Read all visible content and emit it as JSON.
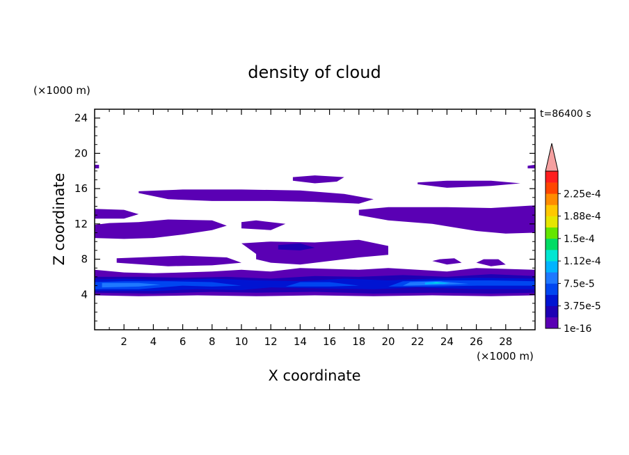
{
  "chart_data": {
    "type": "heatmap",
    "title": "density of cloud",
    "xlabel": "X coordinate",
    "ylabel": "Z coordinate",
    "x_unit": "(×1000 m)",
    "y_unit": "(×1000 m)",
    "time_label": "t=86400 s",
    "xlim": [
      0,
      30
    ],
    "ylim": [
      0,
      25
    ],
    "xticks": [
      2,
      4,
      6,
      8,
      10,
      12,
      14,
      16,
      18,
      20,
      22,
      24,
      26,
      28
    ],
    "yticks": [
      4,
      8,
      12,
      16,
      20,
      24
    ],
    "colorbar": {
      "levels": [
        1e-16,
        1.875e-05,
        3.75e-05,
        5.625e-05,
        7.5e-05,
        9.375e-05,
        0.0001125,
        0.00013125,
        0.00015,
        0.00016875,
        0.0001875,
        0.00020625,
        0.000225,
        0.00024375
      ],
      "labels": [
        "1e-16",
        "3.75e-5",
        "7.5e-5",
        "1.12e-4",
        "1.5e-4",
        "1.88e-4",
        "2.25e-4"
      ],
      "colors": [
        "#5a00b4",
        "#1e00b4",
        "#0014d2",
        "#0046f0",
        "#1e78ff",
        "#00b4ff",
        "#00e6d2",
        "#00dc64",
        "#64e600",
        "#e6e600",
        "#ffc800",
        "#ff8c00",
        "#ff4600",
        "#ff1e1e"
      ],
      "extend_color": "#f5a0a0"
    },
    "regions": [
      {
        "level": 0,
        "points": [
          [
            0,
            3.9
          ],
          [
            3,
            3.8
          ],
          [
            7,
            3.9
          ],
          [
            11,
            3.8
          ],
          [
            15,
            3.9
          ],
          [
            19,
            3.8
          ],
          [
            23,
            3.9
          ],
          [
            27,
            3.8
          ],
          [
            30,
            3.9
          ],
          [
            30,
            6.8
          ],
          [
            28,
            6.9
          ],
          [
            26,
            7.0
          ],
          [
            24,
            6.6
          ],
          [
            22,
            6.8
          ],
          [
            20,
            7.0
          ],
          [
            18,
            6.8
          ],
          [
            16,
            6.9
          ],
          [
            14,
            7.0
          ],
          [
            12,
            6.6
          ],
          [
            10,
            6.8
          ],
          [
            8,
            6.6
          ],
          [
            6,
            6.5
          ],
          [
            4,
            6.4
          ],
          [
            2,
            6.5
          ],
          [
            0,
            6.8
          ]
        ]
      },
      {
        "level": 0,
        "points": [
          [
            0,
            10.4
          ],
          [
            2,
            10.3
          ],
          [
            4,
            10.4
          ],
          [
            6,
            10.8
          ],
          [
            8,
            11.3
          ],
          [
            9,
            11.8
          ],
          [
            8,
            12.4
          ],
          [
            5,
            12.5
          ],
          [
            3,
            12.2
          ],
          [
            1,
            12.1
          ],
          [
            0,
            11.9
          ]
        ]
      },
      {
        "level": 0,
        "points": [
          [
            0,
            12.6
          ],
          [
            2,
            12.6
          ],
          [
            3,
            13.1
          ],
          [
            2,
            13.6
          ],
          [
            0,
            13.7
          ]
        ]
      },
      {
        "level": 0,
        "points": [
          [
            3,
            15.5
          ],
          [
            5,
            14.8
          ],
          [
            8,
            14.6
          ],
          [
            12,
            14.6
          ],
          [
            15,
            14.5
          ],
          [
            18,
            14.3
          ],
          [
            19,
            14.8
          ],
          [
            17,
            15.4
          ],
          [
            14,
            15.8
          ],
          [
            10,
            15.9
          ],
          [
            6,
            15.9
          ],
          [
            3,
            15.7
          ]
        ]
      },
      {
        "level": 0,
        "points": [
          [
            10,
            11.5
          ],
          [
            12,
            11.3
          ],
          [
            13,
            12.0
          ],
          [
            11,
            12.4
          ],
          [
            10,
            12.2
          ]
        ]
      },
      {
        "level": 0,
        "points": [
          [
            18,
            13.0
          ],
          [
            20,
            12.4
          ],
          [
            23,
            12.0
          ],
          [
            26,
            11.2
          ],
          [
            28,
            10.9
          ],
          [
            30,
            11.0
          ],
          [
            30,
            14.1
          ],
          [
            27,
            13.8
          ],
          [
            24,
            13.9
          ],
          [
            20,
            13.9
          ],
          [
            18,
            13.6
          ]
        ]
      },
      {
        "level": 0,
        "points": [
          [
            22,
            16.5
          ],
          [
            24,
            16.1
          ],
          [
            27,
            16.3
          ],
          [
            29,
            16.6
          ],
          [
            27,
            16.9
          ],
          [
            24,
            16.9
          ],
          [
            22,
            16.7
          ]
        ]
      },
      {
        "level": 0,
        "points": [
          [
            13.5,
            16.9
          ],
          [
            15,
            16.6
          ],
          [
            16.5,
            16.8
          ],
          [
            17,
            17.3
          ],
          [
            15,
            17.5
          ],
          [
            13.5,
            17.3
          ]
        ]
      },
      {
        "level": 0,
        "points": [
          [
            11,
            8.0
          ],
          [
            12,
            7.6
          ],
          [
            14,
            7.4
          ],
          [
            16,
            7.8
          ],
          [
            18,
            8.2
          ],
          [
            20,
            8.5
          ],
          [
            20,
            9.5
          ],
          [
            18,
            10.2
          ],
          [
            15,
            9.9
          ],
          [
            12,
            10.0
          ],
          [
            10,
            9.8
          ],
          [
            11,
            8.6
          ]
        ]
      },
      {
        "level": 0,
        "points": [
          [
            1.5,
            7.6
          ],
          [
            5,
            7.2
          ],
          [
            8,
            7.3
          ],
          [
            10,
            7.6
          ],
          [
            9,
            8.2
          ],
          [
            6,
            8.4
          ],
          [
            3,
            8.2
          ],
          [
            1.5,
            8.1
          ]
        ]
      },
      {
        "level": 0,
        "points": [
          [
            23,
            7.8
          ],
          [
            24,
            7.4
          ],
          [
            25,
            7.6
          ],
          [
            24.5,
            8.1
          ],
          [
            23.5,
            8.0
          ]
        ]
      },
      {
        "level": 0,
        "points": [
          [
            26,
            7.6
          ],
          [
            27,
            7.2
          ],
          [
            28,
            7.4
          ],
          [
            27.5,
            8.0
          ],
          [
            26.5,
            8.0
          ]
        ]
      },
      {
        "level": 0,
        "points": [
          [
            29.5,
            18.3
          ],
          [
            30,
            18.3
          ],
          [
            30,
            18.7
          ],
          [
            29.5,
            18.6
          ]
        ]
      },
      {
        "level": 0,
        "points": [
          [
            0,
            18.3
          ],
          [
            0.3,
            18.3
          ],
          [
            0.3,
            18.7
          ],
          [
            0,
            18.7
          ]
        ]
      },
      {
        "level": 1,
        "points": [
          [
            0,
            4.2
          ],
          [
            4,
            4.1
          ],
          [
            8,
            4.3
          ],
          [
            11,
            4.2
          ],
          [
            15,
            4.3
          ],
          [
            19,
            4.1
          ],
          [
            23,
            4.2
          ],
          [
            27,
            4.1
          ],
          [
            30,
            4.2
          ],
          [
            30,
            6.1
          ],
          [
            27,
            6.3
          ],
          [
            24,
            6.0
          ],
          [
            21,
            6.2
          ],
          [
            18,
            6.0
          ],
          [
            15,
            6.1
          ],
          [
            12,
            5.8
          ],
          [
            9,
            6.0
          ],
          [
            6,
            5.9
          ],
          [
            3,
            6.0
          ],
          [
            0,
            6.0
          ]
        ]
      },
      {
        "level": 1,
        "points": [
          [
            12.5,
            9.1
          ],
          [
            14,
            9.0
          ],
          [
            15,
            9.3
          ],
          [
            14,
            9.8
          ],
          [
            12.5,
            9.6
          ]
        ]
      },
      {
        "level": 2,
        "points": [
          [
            0,
            4.4
          ],
          [
            4,
            4.4
          ],
          [
            7,
            4.6
          ],
          [
            10,
            4.5
          ],
          [
            12,
            4.8
          ],
          [
            15,
            4.7
          ],
          [
            19,
            4.6
          ],
          [
            22,
            4.8
          ],
          [
            26,
            4.6
          ],
          [
            30,
            4.6
          ],
          [
            30,
            5.8
          ],
          [
            26,
            5.9
          ],
          [
            23,
            5.8
          ],
          [
            20,
            5.6
          ],
          [
            17,
            5.8
          ],
          [
            14,
            5.5
          ],
          [
            11,
            5.6
          ],
          [
            8,
            5.8
          ],
          [
            5,
            5.6
          ],
          [
            2,
            5.8
          ],
          [
            0,
            5.7
          ]
        ]
      },
      {
        "level": 3,
        "points": [
          [
            0,
            4.6
          ],
          [
            3,
            4.6
          ],
          [
            6,
            5.0
          ],
          [
            8,
            4.9
          ],
          [
            10,
            5.0
          ],
          [
            8,
            5.4
          ],
          [
            5,
            5.5
          ],
          [
            2,
            5.5
          ],
          [
            0,
            5.4
          ]
        ]
      },
      {
        "level": 3,
        "points": [
          [
            13,
            4.9
          ],
          [
            16,
            4.9
          ],
          [
            18,
            5.0
          ],
          [
            16,
            5.4
          ],
          [
            14,
            5.4
          ]
        ]
      },
      {
        "level": 3,
        "points": [
          [
            20,
            4.9
          ],
          [
            23,
            4.9
          ],
          [
            26,
            5.0
          ],
          [
            29,
            5.0
          ],
          [
            30,
            5.0
          ],
          [
            30,
            5.5
          ],
          [
            27,
            5.6
          ],
          [
            24,
            5.6
          ],
          [
            21,
            5.5
          ]
        ]
      },
      {
        "level": 4,
        "points": [
          [
            0.5,
            4.8
          ],
          [
            3,
            4.9
          ],
          [
            4.5,
            5.1
          ],
          [
            3,
            5.3
          ],
          [
            0.5,
            5.3
          ]
        ]
      },
      {
        "level": 4,
        "points": [
          [
            21,
            5.0
          ],
          [
            24,
            5.1
          ],
          [
            25.5,
            5.2
          ],
          [
            23.5,
            5.5
          ],
          [
            21.5,
            5.4
          ]
        ]
      },
      {
        "level": 5,
        "points": [
          [
            22.5,
            5.15
          ],
          [
            23.8,
            5.2
          ],
          [
            24.2,
            5.3
          ],
          [
            23.2,
            5.45
          ],
          [
            22.5,
            5.35
          ]
        ]
      },
      {
        "level": 6,
        "points": [
          [
            23,
            5.25
          ],
          [
            23.6,
            5.28
          ],
          [
            23.3,
            5.38
          ]
        ]
      }
    ]
  }
}
